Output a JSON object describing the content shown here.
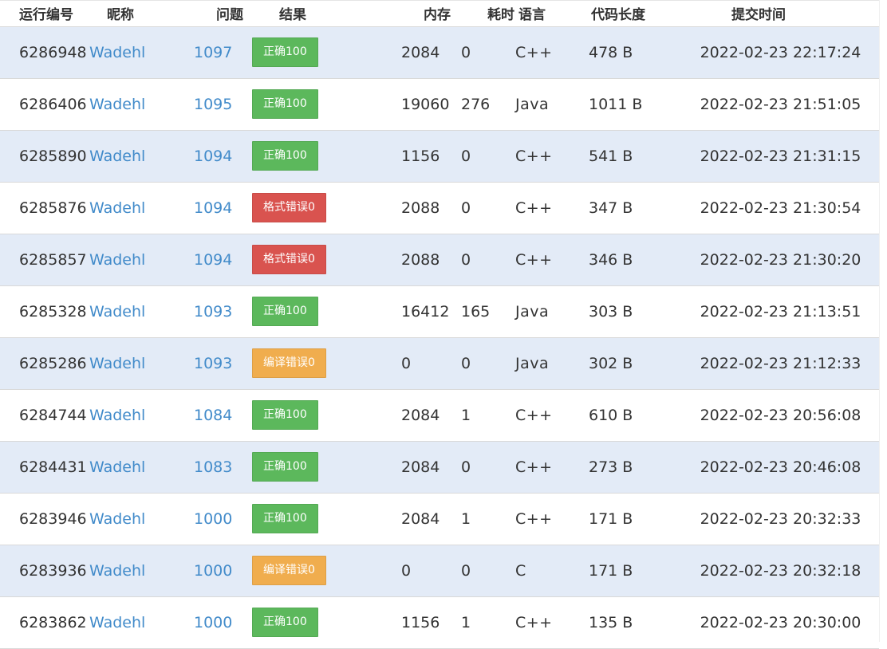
{
  "headers": [
    "运行编号",
    "昵称",
    "问题",
    "结果",
    "内存",
    "耗时",
    "语言",
    "代码长度",
    "提交时间"
  ],
  "colors": {
    "accepted": "#5cb85c",
    "presentation_error": "#d9534f",
    "compile_error": "#f0ad4e",
    "link": "#428bca",
    "row_stripe": "#e3ebf7"
  },
  "rows": [
    {
      "id": "6286948",
      "user": "Wadehl",
      "problem": "1097",
      "result": "正确100",
      "status": "ok",
      "memory": "2084",
      "time": "0",
      "language": "C++",
      "length": "478 B",
      "submitted": "2022-02-23 22:17:24"
    },
    {
      "id": "6286406",
      "user": "Wadehl",
      "problem": "1095",
      "result": "正确100",
      "status": "ok",
      "memory": "19060",
      "time": "276",
      "language": "Java",
      "length": "1011 B",
      "submitted": "2022-02-23 21:51:05"
    },
    {
      "id": "6285890",
      "user": "Wadehl",
      "problem": "1094",
      "result": "正确100",
      "status": "ok",
      "memory": "1156",
      "time": "0",
      "language": "C++",
      "length": "541 B",
      "submitted": "2022-02-23 21:31:15"
    },
    {
      "id": "6285876",
      "user": "Wadehl",
      "problem": "1094",
      "result": "格式错误0",
      "status": "pe",
      "memory": "2088",
      "time": "0",
      "language": "C++",
      "length": "347 B",
      "submitted": "2022-02-23 21:30:54"
    },
    {
      "id": "6285857",
      "user": "Wadehl",
      "problem": "1094",
      "result": "格式错误0",
      "status": "pe",
      "memory": "2088",
      "time": "0",
      "language": "C++",
      "length": "346 B",
      "submitted": "2022-02-23 21:30:20"
    },
    {
      "id": "6285328",
      "user": "Wadehl",
      "problem": "1093",
      "result": "正确100",
      "status": "ok",
      "memory": "16412",
      "time": "165",
      "language": "Java",
      "length": "303 B",
      "submitted": "2022-02-23 21:13:51"
    },
    {
      "id": "6285286",
      "user": "Wadehl",
      "problem": "1093",
      "result": "编译错误0",
      "status": "ce",
      "memory": "0",
      "time": "0",
      "language": "Java",
      "length": "302 B",
      "submitted": "2022-02-23 21:12:33"
    },
    {
      "id": "6284744",
      "user": "Wadehl",
      "problem": "1084",
      "result": "正确100",
      "status": "ok",
      "memory": "2084",
      "time": "1",
      "language": "C++",
      "length": "610 B",
      "submitted": "2022-02-23 20:56:08"
    },
    {
      "id": "6284431",
      "user": "Wadehl",
      "problem": "1083",
      "result": "正确100",
      "status": "ok",
      "memory": "2084",
      "time": "0",
      "language": "C++",
      "length": "273 B",
      "submitted": "2022-02-23 20:46:08"
    },
    {
      "id": "6283946",
      "user": "Wadehl",
      "problem": "1000",
      "result": "正确100",
      "status": "ok",
      "memory": "2084",
      "time": "1",
      "language": "C++",
      "length": "171 B",
      "submitted": "2022-02-23 20:32:33"
    },
    {
      "id": "6283936",
      "user": "Wadehl",
      "problem": "1000",
      "result": "编译错误0",
      "status": "ce",
      "memory": "0",
      "time": "0",
      "language": "C",
      "length": "171 B",
      "submitted": "2022-02-23 20:32:18"
    },
    {
      "id": "6283862",
      "user": "Wadehl",
      "problem": "1000",
      "result": "正确100",
      "status": "ok",
      "memory": "1156",
      "time": "1",
      "language": "C++",
      "length": "135 B",
      "submitted": "2022-02-23 20:30:00"
    }
  ]
}
